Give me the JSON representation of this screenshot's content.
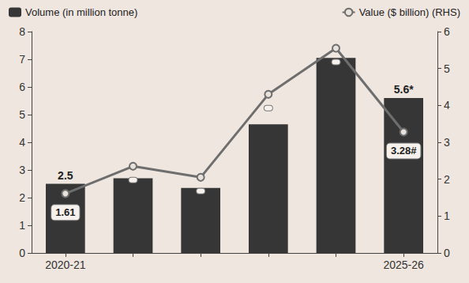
{
  "chart_data": {
    "type": "bar",
    "categories": [
      "2020-21",
      null,
      null,
      null,
      null,
      "2025-26"
    ],
    "series": [
      {
        "name": "Volume (in million tonne)",
        "type": "bar",
        "color": "#363636",
        "values": [
          2.5,
          2.7,
          2.35,
          4.65,
          7.05,
          5.6
        ],
        "value_labels": [
          "2.5",
          null,
          null,
          null,
          null,
          "5.6*"
        ]
      },
      {
        "name": "Value ($ billion) (RHS)",
        "type": "line",
        "axis": "y2",
        "color": "#6e6e6e",
        "marker": "circle",
        "values": [
          1.61,
          2.35,
          2.05,
          4.3,
          5.55,
          3.28
        ],
        "value_labels": [
          "1.61",
          null,
          null,
          null,
          null,
          "3.28#"
        ]
      }
    ],
    "ylim": [
      0,
      8
    ],
    "yticks": [
      0,
      1,
      2,
      3,
      4,
      5,
      6,
      7,
      8
    ],
    "y2lim": [
      0,
      6
    ],
    "y2ticks": [
      0,
      1,
      2,
      3,
      4,
      5,
      6
    ],
    "grid": false,
    "legend": "top",
    "data_labels": true
  }
}
